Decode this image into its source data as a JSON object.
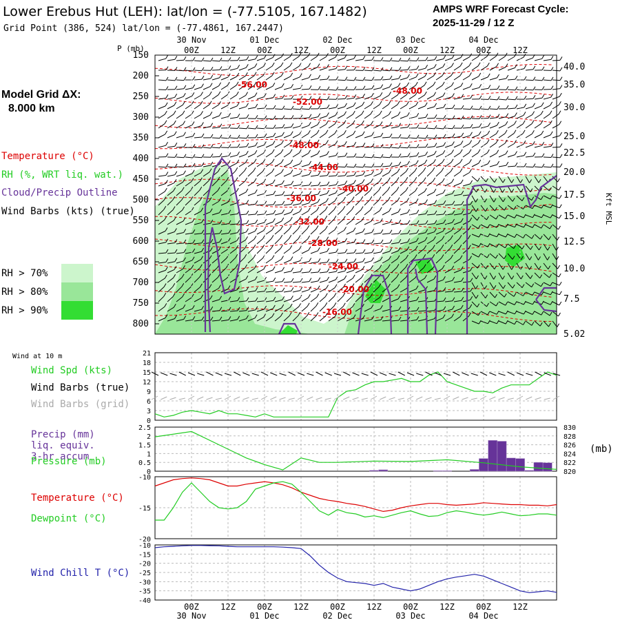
{
  "header": {
    "title": "Lower Erebus Hut (LEH):  lat/lon = (-77.5105, 167.1482)",
    "subtitle": "Grid Point (386, 524) lat/lon = (-77.4861, 167.2447)",
    "cycle_line1": "AMPS WRF Forecast Cycle:",
    "cycle_line2": "2025-11-29 / 12  Z",
    "grid_label": "Model Grid ΔX:",
    "grid_value": "8.000 km"
  },
  "legend": {
    "temperature": "Temperature (°C)",
    "rh": "RH (%, WRT liq. wat.)",
    "cloud": "Cloud/Precip Outline",
    "wind": "Wind Barbs (kts) (true)",
    "rh70": "RH > 70%",
    "rh80": "RH > 80%",
    "rh90": "RH > 90%"
  },
  "colors": {
    "temperature": "#dd0000",
    "rh": "#22cc22",
    "rh70": "#ccf5cc",
    "rh80": "#99e699",
    "rh90": "#33dd33",
    "cloud": "#663399",
    "precip": "#663399",
    "windchill": "#2222aa",
    "wind_grid": "#aaaaaa"
  },
  "time_axis": {
    "hour_labels": [
      "00Z",
      "12Z",
      "00Z",
      "12Z",
      "00Z",
      "12Z",
      "00Z",
      "12Z",
      "00Z",
      "12Z"
    ],
    "date_labels": [
      "30 Nov",
      "01 Dec",
      "02 Dec",
      "03 Dec",
      "04 Dec"
    ]
  },
  "chart_data": [
    {
      "type": "line",
      "name": "cross-section",
      "ylabel": "P (mb)",
      "y_ticks": [
        "150",
        "200",
        "250",
        "300",
        "350",
        "400",
        "450",
        "500",
        "550",
        "600",
        "650",
        "700",
        "750",
        "800"
      ],
      "ylim": [
        150,
        825
      ],
      "right_ticks": [
        "40.0",
        "35.0",
        "30.0",
        "25.0",
        "22.5",
        "20.0",
        "17.5",
        "15.0",
        "12.5",
        "10.0",
        "7.5",
        "5.02"
      ],
      "right_ylabel": "Kft MSL",
      "isotherm_labels": [
        "-56.00",
        "-52.00",
        "-48.00",
        "-48.00",
        "-44.00",
        "-40.00",
        "-36.00",
        "-32.00",
        "-28.00",
        "-24.00",
        "-20.00",
        "-16.00"
      ]
    },
    {
      "type": "line",
      "name": "wind",
      "panel_title": "Wind at 10 m",
      "labels": [
        "Wind Spd (kts)",
        "Wind Barbs (true)",
        "Wind Barbs (grid)"
      ],
      "y_ticks": [
        "0",
        "3",
        "6",
        "9",
        "12",
        "15",
        "18",
        "21"
      ],
      "ylim": [
        0,
        21
      ],
      "x": [
        -12,
        -9,
        -6,
        -3,
        0,
        3,
        6,
        9,
        12,
        15,
        18,
        21,
        24,
        27,
        30,
        33,
        36,
        39,
        42,
        45,
        48,
        51,
        54,
        57,
        60,
        63,
        66,
        69,
        72,
        75,
        78,
        81,
        84,
        87,
        90,
        93,
        96,
        99,
        102,
        105,
        108,
        111,
        114,
        117,
        120
      ],
      "values": [
        2,
        1,
        1.5,
        2.5,
        3,
        2.5,
        2,
        3,
        2,
        2,
        1.5,
        1,
        2,
        1,
        1,
        1,
        1,
        1,
        1,
        1,
        7,
        9,
        9.5,
        11,
        12,
        12,
        12.5,
        13,
        12,
        12,
        14,
        15,
        12,
        11,
        10,
        9,
        9,
        8.5,
        10,
        11,
        11,
        11,
        13,
        15,
        14
      ]
    },
    {
      "type": "line",
      "name": "precip-pressure",
      "labels": [
        "Precip (mm)",
        "liq. equiv.",
        "3-hr accum",
        "Pressure (mb)"
      ],
      "y_ticks": [
        "0",
        "0.5",
        "1",
        "1.5",
        "2",
        "2.5"
      ],
      "ylim": [
        0,
        2.5
      ],
      "right_ticks": [
        "820",
        "822",
        "824",
        "826",
        "828",
        "830"
      ],
      "right_unit": "(mb)",
      "pressure_x": [
        -12,
        0,
        12,
        18,
        24,
        30,
        36,
        42,
        48,
        60,
        72,
        84,
        96,
        108,
        120
      ],
      "pressure_values": [
        827.8,
        829,
        825,
        823,
        821.5,
        820.3,
        823,
        822,
        822,
        822.3,
        822.2,
        822.6,
        821.9,
        821,
        820.4
      ],
      "precip_x": [
        57,
        60,
        63,
        66,
        69,
        72,
        75,
        78,
        81,
        84,
        87,
        90,
        93,
        96,
        99,
        102,
        105,
        108,
        111,
        114,
        117
      ],
      "precip_values": [
        0,
        0.05,
        0.08,
        0,
        0,
        0,
        0,
        0,
        0.03,
        0.03,
        0,
        0,
        0.1,
        0.72,
        1.75,
        1.7,
        0.75,
        0.72,
        0.05,
        0.5,
        0.48
      ]
    },
    {
      "type": "line",
      "name": "temperature-dewpoint",
      "labels": [
        "Temperature (°C)",
        "Dewpoint (°C)"
      ],
      "y_ticks": [
        "-10",
        "-15",
        "-20"
      ],
      "ylim": [
        -20,
        -10
      ],
      "x": [
        -12,
        -9,
        -6,
        -3,
        0,
        3,
        6,
        9,
        12,
        15,
        18,
        21,
        24,
        27,
        30,
        33,
        36,
        39,
        42,
        45,
        48,
        51,
        54,
        57,
        60,
        63,
        66,
        69,
        72,
        75,
        78,
        81,
        84,
        87,
        90,
        93,
        96,
        99,
        102,
        105,
        108,
        111,
        114,
        117,
        120
      ],
      "temperature": [
        -11.5,
        -11,
        -10.5,
        -10.3,
        -10.2,
        -10.3,
        -10.5,
        -11,
        -11.5,
        -11.5,
        -11.2,
        -11,
        -10.8,
        -11,
        -11.3,
        -11.8,
        -12.5,
        -13,
        -13.5,
        -13.8,
        -14,
        -14.3,
        -14.5,
        -14.8,
        -15.2,
        -15.6,
        -15.4,
        -15,
        -14.7,
        -14.5,
        -14.3,
        -14.3,
        -14.5,
        -14.6,
        -14.5,
        -14.4,
        -14.2,
        -14.3,
        -14.4,
        -14.5,
        -14.5,
        -14.6,
        -14.6,
        -14.7,
        -14.5
      ],
      "dewpoint": [
        -17,
        -17,
        -15,
        -12.5,
        -11,
        -12.5,
        -14,
        -15,
        -15.2,
        -15,
        -14,
        -12,
        -11.5,
        -11,
        -10.8,
        -11.2,
        -12.5,
        -14,
        -15.5,
        -16.2,
        -15.3,
        -15.8,
        -16,
        -16.5,
        -16.3,
        -16.6,
        -16.2,
        -15.8,
        -15.5,
        -16,
        -16.4,
        -16.3,
        -15.8,
        -15.5,
        -15.7,
        -16,
        -16.2,
        -16,
        -15.7,
        -16,
        -16.3,
        -16.2,
        -16,
        -16,
        -16.2
      ]
    },
    {
      "type": "line",
      "name": "wind-chill",
      "labels": [
        "Wind Chill T (°C)"
      ],
      "y_ticks": [
        "-10",
        "-15",
        "-20",
        "-25",
        "-30",
        "-35",
        "-40"
      ],
      "ylim": [
        -40,
        -10
      ],
      "x": [
        -12,
        -9,
        -6,
        -3,
        0,
        3,
        6,
        9,
        12,
        15,
        18,
        21,
        24,
        27,
        30,
        33,
        36,
        39,
        42,
        45,
        48,
        51,
        54,
        57,
        60,
        63,
        66,
        69,
        72,
        75,
        78,
        81,
        84,
        87,
        90,
        93,
        96,
        99,
        102,
        105,
        108,
        111,
        114,
        117,
        120
      ],
      "values": [
        -11.5,
        -11,
        -10.8,
        -10.5,
        -10.3,
        -10.3,
        -10.4,
        -10.5,
        -10.8,
        -11,
        -11,
        -11,
        -11,
        -11,
        -11.2,
        -11.5,
        -12,
        -16,
        -21,
        -25,
        -28,
        -30,
        -30.5,
        -31,
        -32,
        -31,
        -33,
        -34,
        -35,
        -34,
        -32,
        -30,
        -28.5,
        -27.5,
        -26.8,
        -26,
        -27,
        -29,
        -31,
        -33,
        -35,
        -36,
        -35.5,
        -35,
        -35.8
      ]
    }
  ]
}
